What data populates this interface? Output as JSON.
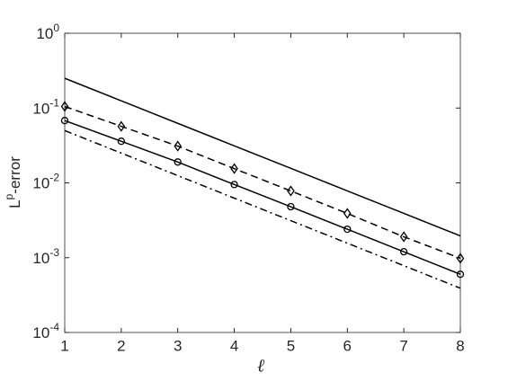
{
  "chart_data": {
    "type": "line",
    "xlabel": "ℓ",
    "ylabel": "L^p-error",
    "x": [
      1,
      2,
      3,
      4,
      5,
      6,
      7,
      8
    ],
    "xlim": [
      1,
      8
    ],
    "xticks": [
      1,
      2,
      3,
      4,
      5,
      6,
      7,
      8
    ],
    "ylim": [
      0.0001,
      1
    ],
    "yscale": "log",
    "yticks": [
      {
        "value": 0.0001,
        "label": "10^-4"
      },
      {
        "value": 0.001,
        "label": "10^-3"
      },
      {
        "value": 0.01,
        "label": "10^-2"
      },
      {
        "value": 0.1,
        "label": "10^-1"
      },
      {
        "value": 1,
        "label": "10^0"
      }
    ],
    "series": [
      {
        "color": "#000000",
        "linestyle": "solid",
        "marker": "none",
        "values": [
          0.25,
          0.125,
          0.0625,
          0.03125,
          0.015625,
          0.0078125,
          0.00390625,
          0.001953
        ]
      },
      {
        "color": "#000000",
        "linestyle": "dashed",
        "marker": "diamond",
        "values": [
          0.105,
          0.057,
          0.031,
          0.0155,
          0.0078,
          0.0039,
          0.0019,
          0.00098
        ]
      },
      {
        "color": "#000000",
        "linestyle": "solid",
        "marker": "circle",
        "values": [
          0.068,
          0.036,
          0.019,
          0.0095,
          0.0048,
          0.0024,
          0.0012,
          0.0006
        ]
      },
      {
        "color": "#000000",
        "linestyle": "dashdot",
        "marker": "none",
        "values": [
          0.05,
          0.025,
          0.0125,
          0.00625,
          0.003125,
          0.0015625,
          0.00078125,
          0.000390625
        ]
      }
    ]
  }
}
